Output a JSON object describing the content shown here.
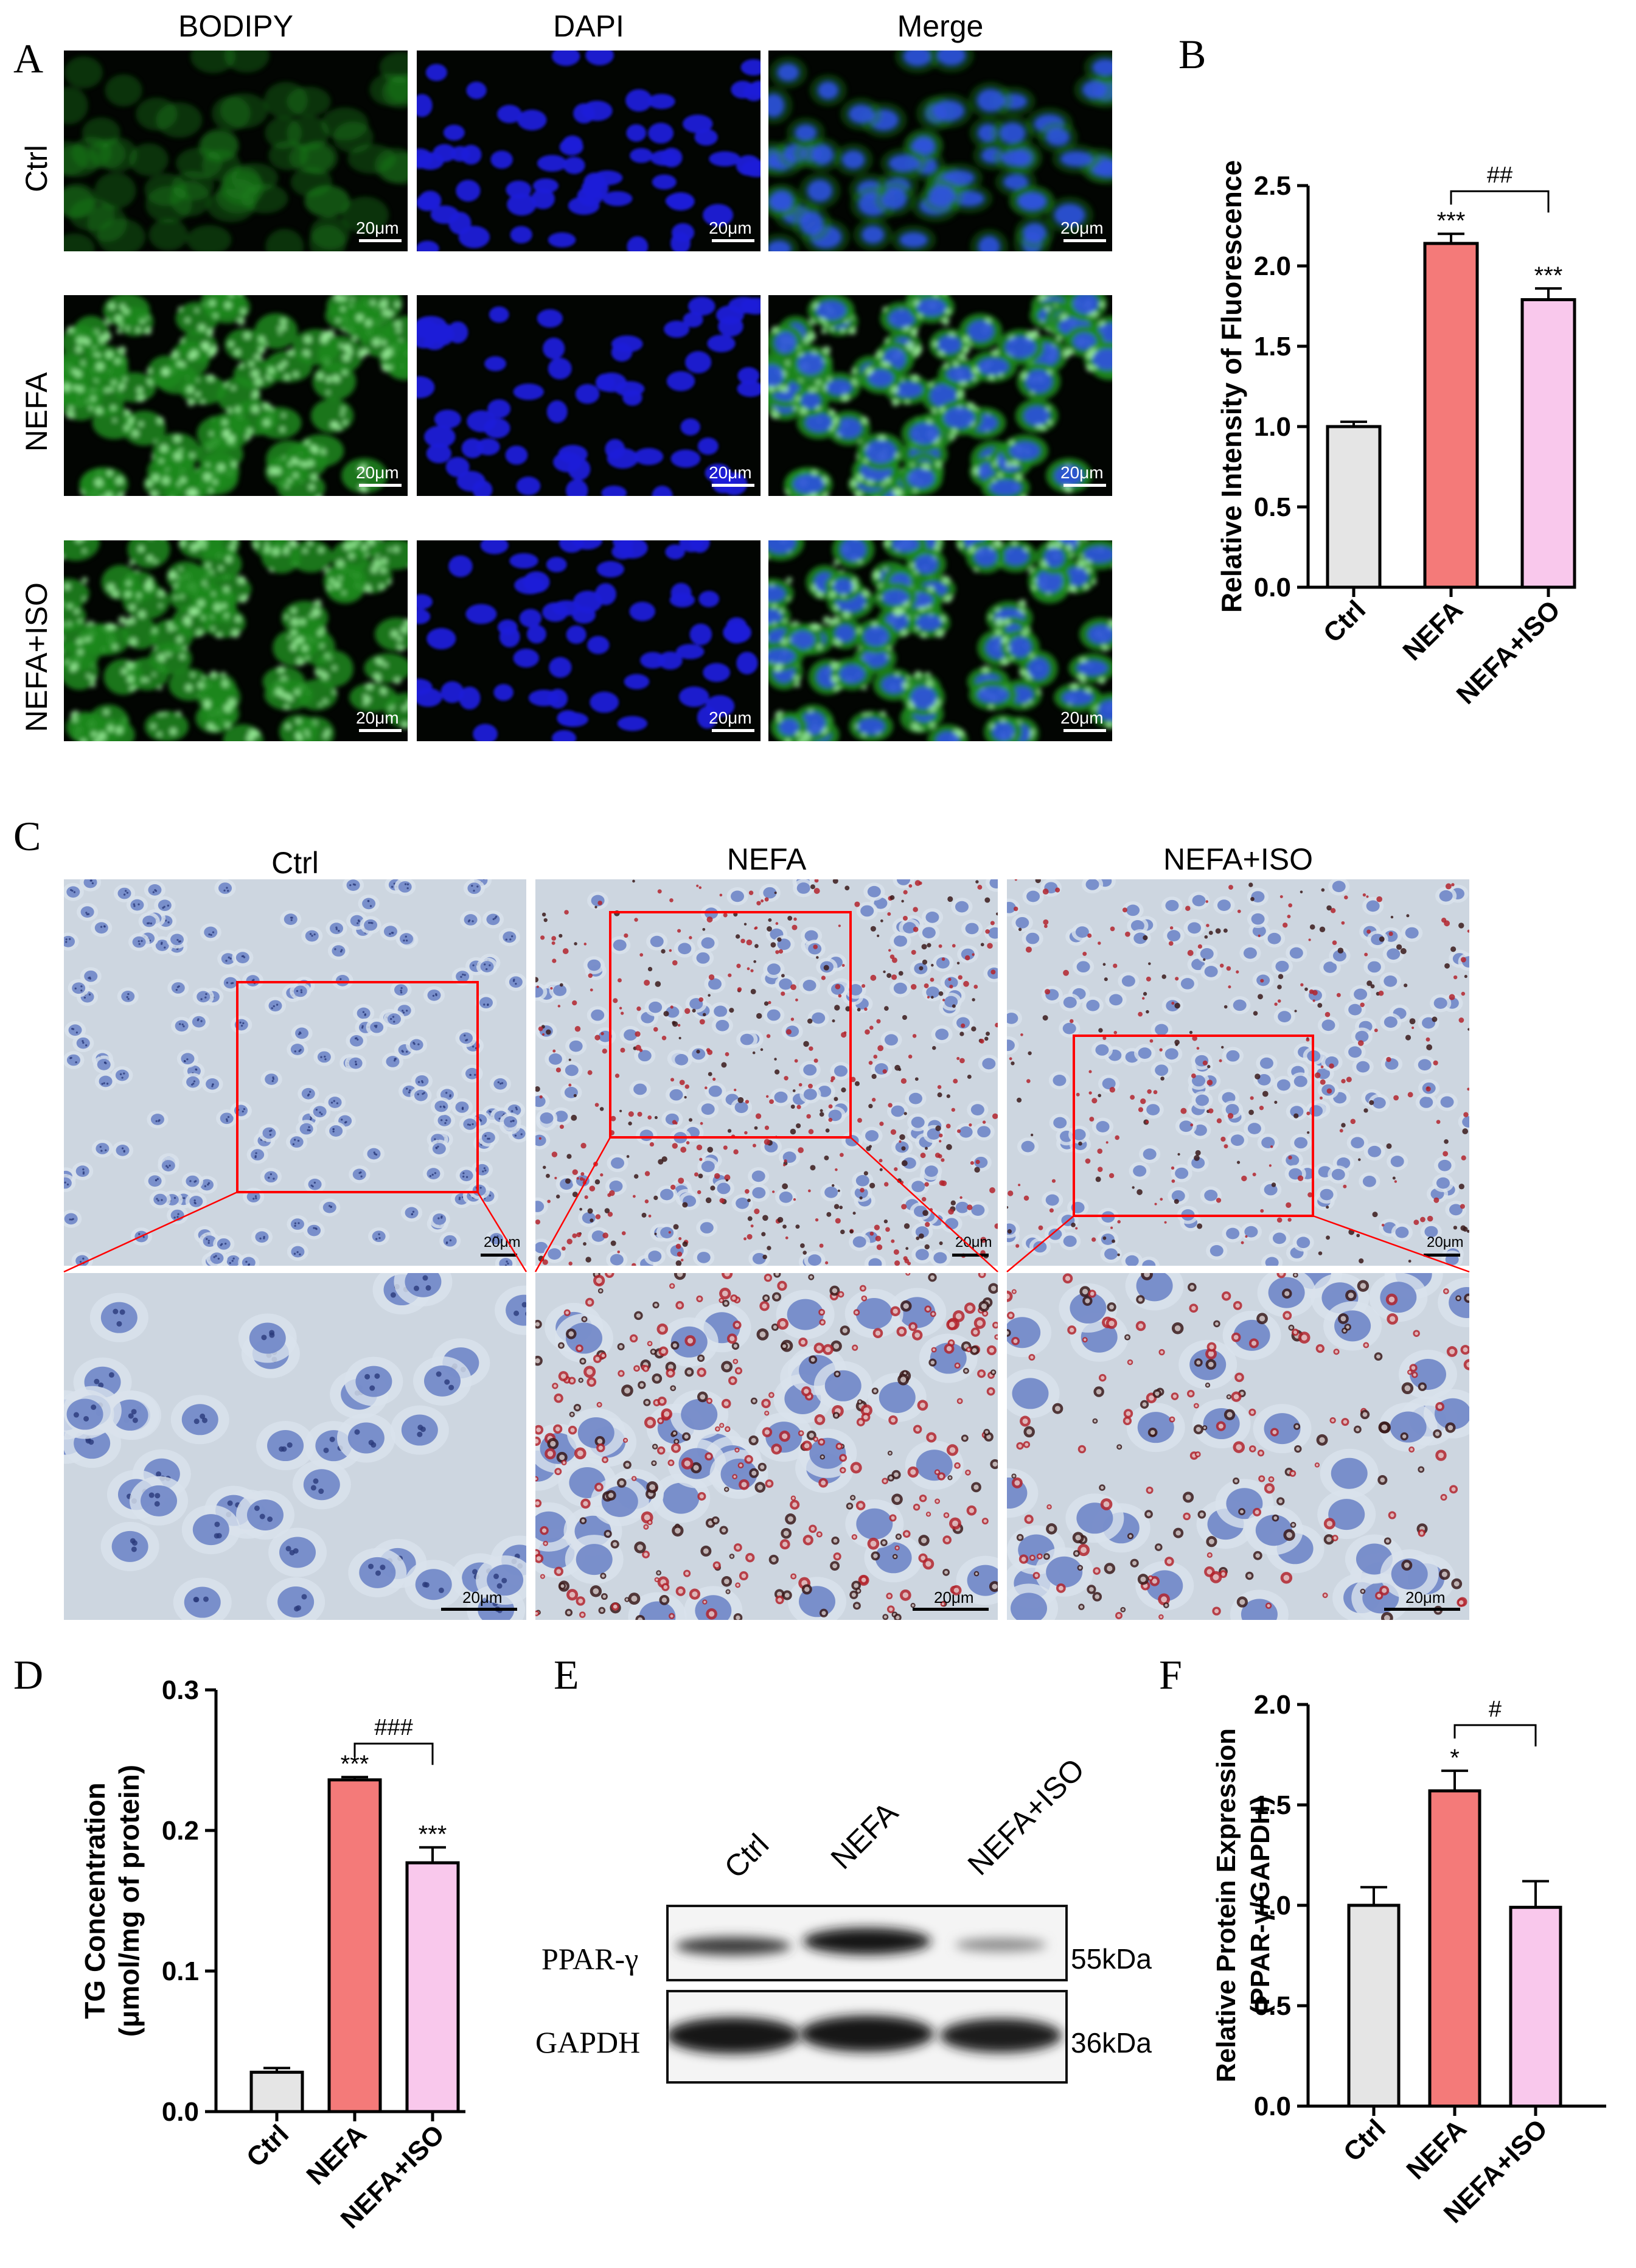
{
  "panel_labels": {
    "A": "A",
    "B": "B",
    "C": "C",
    "D": "D",
    "E": "E",
    "F": "F"
  },
  "panelA": {
    "columns": [
      "BODIPY",
      "DAPI",
      "Merge"
    ],
    "rows": [
      "Ctrl",
      "NEFA",
      "NEFA+ISO"
    ],
    "scale_label": "20μm",
    "colors": {
      "bodipy": "#1f8a1f",
      "dapi": "#1a1ad8",
      "merge": "#1f7d6a"
    }
  },
  "panelC": {
    "columns": [
      "Ctrl",
      "NEFA",
      "NEFA+ISO"
    ],
    "scale_label": "20μm",
    "colors": {
      "background": "#cdd6e0",
      "nucleus": "#6f86c8",
      "lipid": "#b3242d",
      "box": "#ff0000"
    }
  },
  "panelE": {
    "lanes": [
      "Ctrl",
      "NEFA",
      "NEFA+ISO"
    ],
    "bands": [
      {
        "name": "PPAR-γ",
        "size": "55kDa"
      },
      {
        "name": "GAPDH",
        "size": "36kDa"
      }
    ]
  },
  "chart_data": [
    {
      "id": "B",
      "type": "bar",
      "categories": [
        "Ctrl",
        "NEFA",
        "NEFA+ISO"
      ],
      "values": [
        1.0,
        2.14,
        1.79
      ],
      "errors": [
        0.03,
        0.06,
        0.07
      ],
      "ylabel": "Relative Intensity of Fluorescence",
      "ylim": [
        0,
        2.5
      ],
      "yticks": [
        "0.0",
        "0.5",
        "1.0",
        "1.5",
        "2.0",
        "2.5"
      ],
      "annotations": [
        "",
        "***",
        "***"
      ],
      "comparison": {
        "between": [
          1,
          2
        ],
        "label": "##"
      },
      "colors": [
        "#e5e5e5",
        "#f47a79",
        "#f9c8ec"
      ]
    },
    {
      "id": "D",
      "type": "bar",
      "categories": [
        "Ctrl",
        "NEFA",
        "NEFA+ISO"
      ],
      "values": [
        0.028,
        0.236,
        0.177
      ],
      "errors": [
        0.003,
        0.002,
        0.011
      ],
      "ylabel": [
        "TG Concentration",
        "(μmol/mg of protein)"
      ],
      "ylim": [
        0,
        0.3
      ],
      "yticks": [
        "0.0",
        "0.1",
        "0.2",
        "0.3"
      ],
      "annotations": [
        "",
        "***",
        "***"
      ],
      "comparison": {
        "between": [
          1,
          2
        ],
        "label": "###"
      },
      "colors": [
        "#e5e5e5",
        "#f47a79",
        "#f9c8ec"
      ]
    },
    {
      "id": "F",
      "type": "bar",
      "categories": [
        "Ctrl",
        "NEFA",
        "NEFA+ISO"
      ],
      "values": [
        1.0,
        1.57,
        0.99
      ],
      "errors": [
        0.09,
        0.1,
        0.13
      ],
      "ylabel": [
        "Relative Protein Expression",
        "(PPAR-γ/GAPDH)"
      ],
      "ylim": [
        0,
        2.0
      ],
      "yticks": [
        "0.0",
        "0.5",
        "1.0",
        "1.5",
        "2.0"
      ],
      "annotations": [
        "",
        "*",
        ""
      ],
      "comparison": {
        "between": [
          1,
          2
        ],
        "label": "#"
      },
      "colors": [
        "#e5e5e5",
        "#f47a79",
        "#f9c8ec"
      ]
    }
  ]
}
